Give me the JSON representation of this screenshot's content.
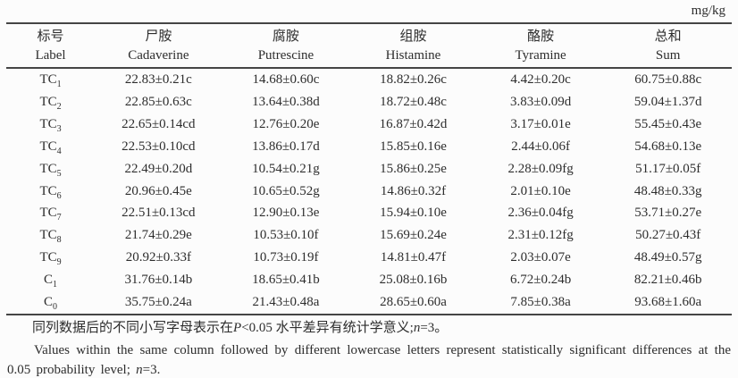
{
  "unit_label": "mg/kg",
  "table": {
    "headers": [
      {
        "zh": "标号",
        "en": "Label"
      },
      {
        "zh": "尸胺",
        "en": "Cadaverine"
      },
      {
        "zh": "腐胺",
        "en": "Putrescine"
      },
      {
        "zh": "组胺",
        "en": "Histamine"
      },
      {
        "zh": "酪胺",
        "en": "Tyramine"
      },
      {
        "zh": "总和",
        "en": "Sum"
      }
    ],
    "rows": [
      {
        "label": {
          "base": "TC",
          "sub": "1"
        },
        "values": [
          "22.83±0.21c",
          "14.68±0.60c",
          "18.82±0.26c",
          "4.42±0.20c",
          "60.75±0.88c"
        ]
      },
      {
        "label": {
          "base": "TC",
          "sub": "2"
        },
        "values": [
          "22.85±0.63c",
          "13.64±0.38d",
          "18.72±0.48c",
          "3.83±0.09d",
          "59.04±1.37d"
        ]
      },
      {
        "label": {
          "base": "TC",
          "sub": "3"
        },
        "values": [
          "22.65±0.14cd",
          "12.76±0.20e",
          "16.87±0.42d",
          "3.17±0.01e",
          "55.45±0.43e"
        ]
      },
      {
        "label": {
          "base": "TC",
          "sub": "4"
        },
        "values": [
          "22.53±0.10cd",
          "13.86±0.17d",
          "15.85±0.16e",
          "2.44±0.06f",
          "54.68±0.13e"
        ]
      },
      {
        "label": {
          "base": "TC",
          "sub": "5"
        },
        "values": [
          "22.49±0.20d",
          "10.54±0.21g",
          "15.86±0.25e",
          "2.28±0.09fg",
          "51.17±0.05f"
        ]
      },
      {
        "label": {
          "base": "TC",
          "sub": "6"
        },
        "values": [
          "20.96±0.45e",
          "10.65±0.52g",
          "14.86±0.32f",
          "2.01±0.10e",
          "48.48±0.33g"
        ]
      },
      {
        "label": {
          "base": "TC",
          "sub": "7"
        },
        "values": [
          "22.51±0.13cd",
          "12.90±0.13e",
          "15.94±0.10e",
          "2.36±0.04fg",
          "53.71±0.27e"
        ]
      },
      {
        "label": {
          "base": "TC",
          "sub": "8"
        },
        "values": [
          "21.74±0.29e",
          "10.53±0.10f",
          "15.69±0.24e",
          "2.31±0.12fg",
          "50.27±0.43f"
        ]
      },
      {
        "label": {
          "base": "TC",
          "sub": "9"
        },
        "values": [
          "20.92±0.33f",
          "10.73±0.19f",
          "14.81±0.47f",
          "2.03±0.07e",
          "48.49±0.57g"
        ]
      },
      {
        "label": {
          "base": "C",
          "sub": "1"
        },
        "values": [
          "31.76±0.14b",
          "18.65±0.41b",
          "25.08±0.16b",
          "6.72±0.24b",
          "82.21±0.46b"
        ]
      },
      {
        "label": {
          "base": "C",
          "sub": "0"
        },
        "values": [
          "35.75±0.24a",
          "21.43±0.48a",
          "28.65±0.60a",
          "7.85±0.38a",
          "93.68±1.60a"
        ]
      }
    ]
  },
  "notes": {
    "zh_segments": [
      {
        "t": "同列数据后的不同小写字母表示在",
        "i": false
      },
      {
        "t": "P",
        "i": true
      },
      {
        "t": "<0.05 水平差异有统计学意义;",
        "i": false
      },
      {
        "t": "n",
        "i": true
      },
      {
        "t": "=3。",
        "i": false
      }
    ],
    "en_segments": [
      {
        "t": "Values within the same column followed by different lowercase letters represent statistically significant differences at the 0.05 probability level; ",
        "i": false
      },
      {
        "t": "n",
        "i": true
      },
      {
        "t": "=3.",
        "i": false
      }
    ]
  }
}
